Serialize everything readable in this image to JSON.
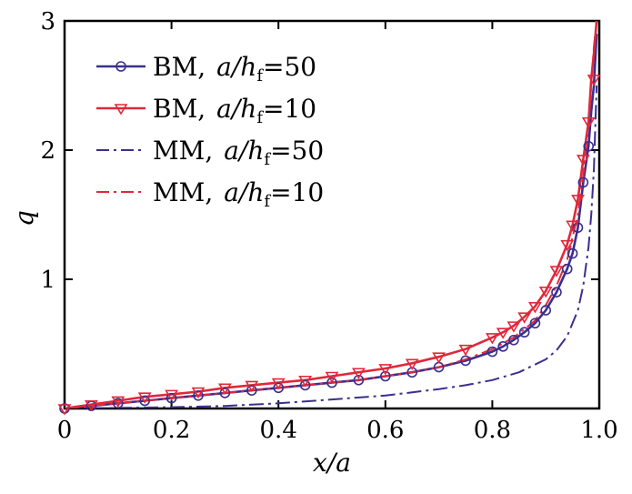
{
  "chart_data": {
    "type": "line",
    "xlabel": "x/a",
    "ylabel": "q",
    "xlim": [
      0,
      1.0
    ],
    "ylim": [
      0,
      3
    ],
    "xticks": [
      "0",
      "0.2",
      "0.4",
      "0.6",
      "0.8",
      "1.0"
    ],
    "yticks": [
      "1",
      "2",
      "3"
    ],
    "grid": false,
    "legend_position": "top-left",
    "series": [
      {
        "name": "BM, a/hf=50",
        "legend_prefix": "BM,",
        "legend_ratio": "a/h",
        "legend_sub": "f",
        "legend_value": "=50",
        "color": "#3a2f8f",
        "linestyle": "solid",
        "marker": "circle",
        "x": [
          0.0,
          0.05,
          0.1,
          0.15,
          0.2,
          0.25,
          0.3,
          0.35,
          0.4,
          0.45,
          0.5,
          0.55,
          0.6,
          0.65,
          0.7,
          0.75,
          0.8,
          0.82,
          0.84,
          0.86,
          0.88,
          0.9,
          0.92,
          0.94,
          0.95,
          0.96,
          0.97,
          0.98,
          0.985,
          0.99,
          0.995
        ],
        "y": [
          0.0,
          0.02,
          0.04,
          0.06,
          0.08,
          0.1,
          0.12,
          0.14,
          0.16,
          0.18,
          0.2,
          0.22,
          0.25,
          0.28,
          0.32,
          0.37,
          0.44,
          0.48,
          0.53,
          0.59,
          0.66,
          0.76,
          0.9,
          1.08,
          1.2,
          1.4,
          1.75,
          2.03,
          2.3,
          2.5,
          2.9
        ],
        "marker_x": [
          0.0,
          0.05,
          0.1,
          0.15,
          0.2,
          0.25,
          0.3,
          0.35,
          0.4,
          0.45,
          0.5,
          0.55,
          0.6,
          0.65,
          0.7,
          0.75,
          0.8,
          0.82,
          0.84,
          0.86,
          0.88,
          0.9,
          0.92,
          0.94,
          0.95,
          0.96,
          0.97,
          0.98
        ],
        "marker_y": [
          0.0,
          0.02,
          0.04,
          0.06,
          0.08,
          0.1,
          0.12,
          0.14,
          0.16,
          0.18,
          0.2,
          0.22,
          0.25,
          0.28,
          0.32,
          0.37,
          0.44,
          0.48,
          0.53,
          0.59,
          0.66,
          0.76,
          0.9,
          1.08,
          1.2,
          1.4,
          1.75,
          2.03
        ]
      },
      {
        "name": "BM, a/hf=10",
        "legend_prefix": "BM,",
        "legend_ratio": "a/h",
        "legend_sub": "f",
        "legend_value": "=10",
        "color": "#e0283a",
        "linestyle": "solid",
        "marker": "triangle-down",
        "x": [
          0.0,
          0.05,
          0.1,
          0.15,
          0.2,
          0.25,
          0.3,
          0.35,
          0.4,
          0.45,
          0.5,
          0.55,
          0.6,
          0.65,
          0.7,
          0.75,
          0.8,
          0.82,
          0.84,
          0.86,
          0.88,
          0.9,
          0.92,
          0.94,
          0.95,
          0.96,
          0.97,
          0.98,
          0.985,
          0.99,
          0.995
        ],
        "y": [
          0.0,
          0.03,
          0.06,
          0.09,
          0.11,
          0.13,
          0.16,
          0.18,
          0.2,
          0.22,
          0.25,
          0.28,
          0.31,
          0.35,
          0.4,
          0.46,
          0.55,
          0.59,
          0.64,
          0.71,
          0.79,
          0.91,
          1.07,
          1.27,
          1.42,
          1.62,
          1.93,
          2.22,
          2.55,
          2.75,
          3.0
        ],
        "marker_x": [
          0.0,
          0.05,
          0.1,
          0.15,
          0.2,
          0.25,
          0.3,
          0.35,
          0.4,
          0.45,
          0.5,
          0.55,
          0.6,
          0.65,
          0.7,
          0.75,
          0.8,
          0.82,
          0.84,
          0.86,
          0.88,
          0.9,
          0.92,
          0.94,
          0.95,
          0.96,
          0.97,
          0.98,
          0.99
        ],
        "marker_y": [
          0.0,
          0.03,
          0.06,
          0.09,
          0.11,
          0.13,
          0.16,
          0.18,
          0.2,
          0.22,
          0.25,
          0.28,
          0.31,
          0.35,
          0.4,
          0.46,
          0.55,
          0.59,
          0.64,
          0.71,
          0.79,
          0.91,
          1.07,
          1.27,
          1.42,
          1.62,
          1.93,
          2.22,
          2.55
        ]
      },
      {
        "name": "MM, a/hf=50",
        "legend_prefix": "MM,",
        "legend_ratio": "a/h",
        "legend_sub": "f",
        "legend_value": "=50",
        "color": "#3a2f8f",
        "linestyle": "dashdot",
        "marker": "none",
        "x": [
          0.0,
          0.1,
          0.2,
          0.3,
          0.4,
          0.5,
          0.6,
          0.7,
          0.75,
          0.8,
          0.85,
          0.9,
          0.92,
          0.94,
          0.96,
          0.97,
          0.98,
          0.985,
          0.99,
          0.995
        ],
        "y": [
          0.0,
          0.005,
          0.01,
          0.02,
          0.04,
          0.07,
          0.1,
          0.15,
          0.18,
          0.22,
          0.28,
          0.38,
          0.45,
          0.56,
          0.76,
          0.95,
          1.25,
          1.5,
          1.85,
          2.5
        ]
      },
      {
        "name": "MM, a/hf=10",
        "legend_prefix": "MM,",
        "legend_ratio": "a/h",
        "legend_sub": "f",
        "legend_value": "=10",
        "color": "#e0283a",
        "linestyle": "dashdot",
        "marker": "none",
        "x": [
          0.0,
          0.05,
          0.1,
          0.15,
          0.2,
          0.25,
          0.3,
          0.35,
          0.4,
          0.45,
          0.5,
          0.55,
          0.6,
          0.65,
          0.7,
          0.75,
          0.8,
          0.84,
          0.88,
          0.9,
          0.92,
          0.94,
          0.96,
          0.97,
          0.98,
          0.985,
          0.99,
          0.995
        ],
        "y": [
          0.0,
          0.02,
          0.04,
          0.06,
          0.08,
          0.1,
          0.12,
          0.14,
          0.16,
          0.18,
          0.2,
          0.22,
          0.25,
          0.28,
          0.32,
          0.38,
          0.46,
          0.55,
          0.68,
          0.8,
          0.95,
          1.15,
          1.5,
          1.8,
          2.2,
          2.5,
          2.8,
          3.0
        ]
      }
    ]
  }
}
